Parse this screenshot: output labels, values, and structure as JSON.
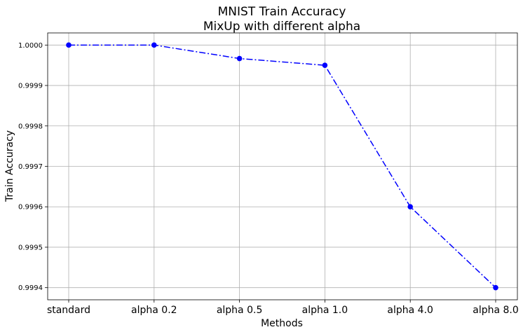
{
  "chart_data": {
    "type": "line",
    "title_line1": "MNIST Train Accuracy",
    "title_line2": "MixUp with different alpha",
    "xlabel": "Methods",
    "ylabel": "Train Accuracy",
    "categories": [
      "standard",
      "alpha 0.2",
      "alpha 0.5",
      "alpha 1.0",
      "alpha 4.0",
      "alpha 8.0"
    ],
    "values": [
      1.0,
      1.0,
      0.99996667,
      0.99995,
      0.9996,
      0.9994
    ],
    "ylim": [
      0.99937,
      1.00003
    ],
    "yticks": [
      0.9994,
      0.9995,
      0.9996,
      0.9997,
      0.9998,
      0.9999,
      1.0
    ],
    "ytick_labels": [
      "0.9994",
      "0.9995",
      "0.9996",
      "0.9997",
      "0.9998",
      "0.9999",
      "1.0000"
    ],
    "grid": true,
    "line_style": "dash-dot",
    "color": "#0000ff"
  }
}
